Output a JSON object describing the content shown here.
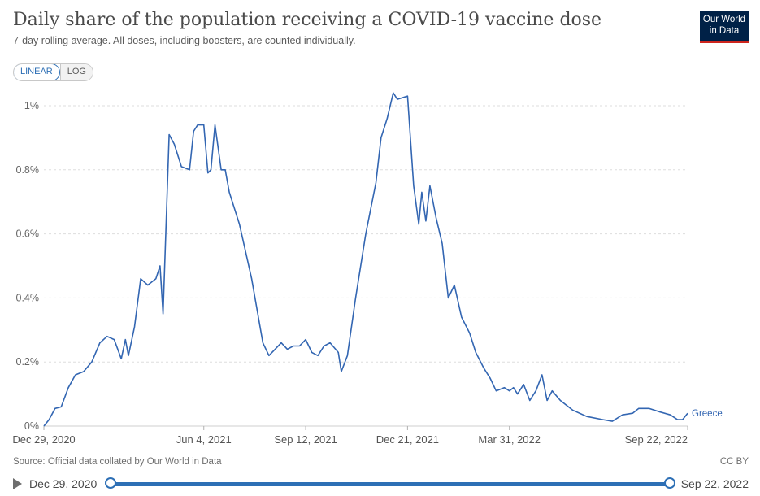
{
  "header": {
    "title": "Daily share of the population receiving a COVID-19 vaccine dose",
    "subtitle": "7-day rolling average. All doses, including boosters, are counted individually.",
    "logo_line1": "Our World",
    "logo_line2": "in Data"
  },
  "controls": {
    "linear_label": "LINEAR",
    "log_label": "LOG",
    "active_scale": "linear"
  },
  "footer": {
    "source": "Source: Official data collated by Our World in Data",
    "license": "CC BY"
  },
  "timeline": {
    "start_label": "Dec 29, 2020",
    "end_label": "Sep 22, 2022"
  },
  "colors": {
    "series": "#3366b2",
    "accent": "#2d6fb5",
    "logo_bg": "#002147",
    "logo_bar": "#ce261e"
  },
  "chart_data": {
    "type": "line",
    "title": "Daily share of the population receiving a COVID-19 vaccine dose",
    "subtitle": "7-day rolling average. All doses, including boosters, are counted individually.",
    "xlabel": "",
    "ylabel": "",
    "x_ticks": [
      "Dec 29, 2020",
      "Jun 4, 2021",
      "Sep 12, 2021",
      "Dec 21, 2021",
      "Mar 31, 2022",
      "Sep 22, 2022"
    ],
    "y_ticks": [
      "0%",
      "0.2%",
      "0.4%",
      "0.6%",
      "0.8%",
      "1%"
    ],
    "ylim": [
      0,
      1.0
    ],
    "grid": "horizontal dashed",
    "legend": "inline label at line end",
    "series": [
      {
        "name": "Greece",
        "unit": "%",
        "points": [
          [
            "2020-12-29",
            0.0
          ],
          [
            "2021-01-03",
            0.02
          ],
          [
            "2021-01-09",
            0.055
          ],
          [
            "2021-01-15",
            0.06
          ],
          [
            "2021-01-22",
            0.12
          ],
          [
            "2021-01-29",
            0.16
          ],
          [
            "2021-02-06",
            0.17
          ],
          [
            "2021-02-14",
            0.2
          ],
          [
            "2021-02-22",
            0.26
          ],
          [
            "2021-03-01",
            0.28
          ],
          [
            "2021-03-08",
            0.27
          ],
          [
            "2021-03-15",
            0.21
          ],
          [
            "2021-03-19",
            0.27
          ],
          [
            "2021-03-22",
            0.22
          ],
          [
            "2021-03-28",
            0.31
          ],
          [
            "2021-04-03",
            0.46
          ],
          [
            "2021-04-10",
            0.44
          ],
          [
            "2021-04-18",
            0.46
          ],
          [
            "2021-04-22",
            0.5
          ],
          [
            "2021-04-25",
            0.35
          ],
          [
            "2021-05-01",
            0.91
          ],
          [
            "2021-05-06",
            0.88
          ],
          [
            "2021-05-13",
            0.81
          ],
          [
            "2021-05-21",
            0.8
          ],
          [
            "2021-05-25",
            0.92
          ],
          [
            "2021-05-29",
            0.94
          ],
          [
            "2021-06-04",
            0.94
          ],
          [
            "2021-06-08",
            0.79
          ],
          [
            "2021-06-11",
            0.8
          ],
          [
            "2021-06-15",
            0.94
          ],
          [
            "2021-06-21",
            0.8
          ],
          [
            "2021-06-25",
            0.8
          ],
          [
            "2021-06-29",
            0.73
          ],
          [
            "2021-07-09",
            0.63
          ],
          [
            "2021-07-21",
            0.46
          ],
          [
            "2021-08-01",
            0.26
          ],
          [
            "2021-08-07",
            0.22
          ],
          [
            "2021-08-13",
            0.24
          ],
          [
            "2021-08-19",
            0.26
          ],
          [
            "2021-08-25",
            0.24
          ],
          [
            "2021-08-31",
            0.25
          ],
          [
            "2021-09-06",
            0.25
          ],
          [
            "2021-09-12",
            0.27
          ],
          [
            "2021-09-18",
            0.23
          ],
          [
            "2021-09-24",
            0.22
          ],
          [
            "2021-09-30",
            0.25
          ],
          [
            "2021-10-06",
            0.26
          ],
          [
            "2021-10-14",
            0.23
          ],
          [
            "2021-10-17",
            0.17
          ],
          [
            "2021-10-23",
            0.22
          ],
          [
            "2021-10-31",
            0.4
          ],
          [
            "2021-11-10",
            0.6
          ],
          [
            "2021-11-20",
            0.76
          ],
          [
            "2021-11-25",
            0.9
          ],
          [
            "2021-12-01",
            0.96
          ],
          [
            "2021-12-07",
            1.04
          ],
          [
            "2021-12-11",
            1.02
          ],
          [
            "2021-12-21",
            1.03
          ],
          [
            "2021-12-27",
            0.75
          ],
          [
            "2022-01-01",
            0.63
          ],
          [
            "2022-01-04",
            0.73
          ],
          [
            "2022-01-08",
            0.64
          ],
          [
            "2022-01-12",
            0.75
          ],
          [
            "2022-01-18",
            0.65
          ],
          [
            "2022-01-24",
            0.57
          ],
          [
            "2022-01-30",
            0.4
          ],
          [
            "2022-02-05",
            0.44
          ],
          [
            "2022-02-12",
            0.34
          ],
          [
            "2022-02-20",
            0.29
          ],
          [
            "2022-02-26",
            0.23
          ],
          [
            "2022-03-06",
            0.18
          ],
          [
            "2022-03-12",
            0.15
          ],
          [
            "2022-03-18",
            0.11
          ],
          [
            "2022-03-26",
            0.12
          ],
          [
            "2022-03-31",
            0.11
          ],
          [
            "2022-04-04",
            0.12
          ],
          [
            "2022-04-08",
            0.1
          ],
          [
            "2022-04-14",
            0.13
          ],
          [
            "2022-04-20",
            0.08
          ],
          [
            "2022-04-26",
            0.11
          ],
          [
            "2022-05-02",
            0.16
          ],
          [
            "2022-05-07",
            0.08
          ],
          [
            "2022-05-12",
            0.11
          ],
          [
            "2022-05-20",
            0.08
          ],
          [
            "2022-06-01",
            0.05
          ],
          [
            "2022-06-15",
            0.03
          ],
          [
            "2022-07-01",
            0.02
          ],
          [
            "2022-07-10",
            0.015
          ],
          [
            "2022-07-20",
            0.035
          ],
          [
            "2022-07-30",
            0.04
          ],
          [
            "2022-08-05",
            0.055
          ],
          [
            "2022-08-15",
            0.055
          ],
          [
            "2022-08-25",
            0.045
          ],
          [
            "2022-09-05",
            0.035
          ],
          [
            "2022-09-12",
            0.02
          ],
          [
            "2022-09-17",
            0.02
          ],
          [
            "2022-09-22",
            0.04
          ]
        ]
      }
    ]
  }
}
